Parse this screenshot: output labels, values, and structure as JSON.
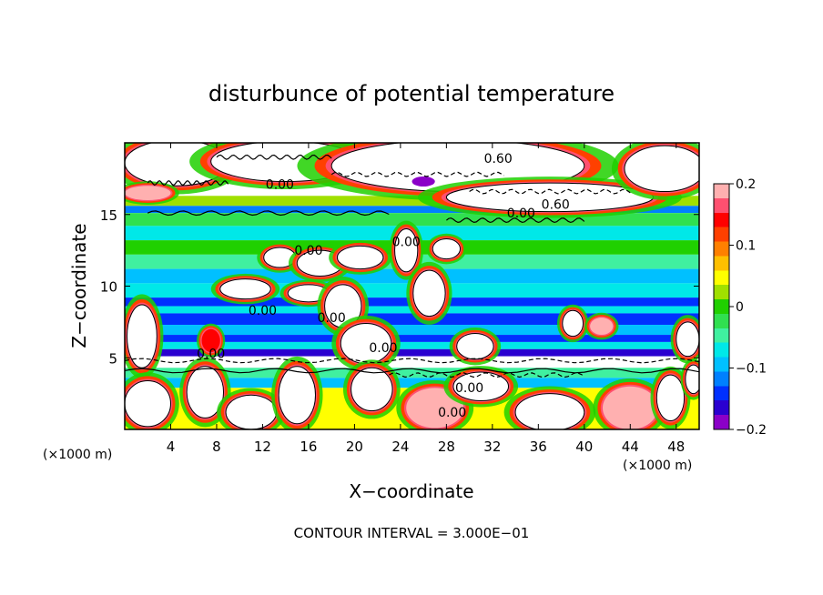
{
  "chart_data": {
    "type": "heatmap",
    "title": "disturbunce of potential temperature",
    "xlabel": "X−coordinate",
    "ylabel": "Z−coordinate",
    "x_unit_left": "(×1000 m)",
    "x_unit_right": "(×1000 m)",
    "x_ticks": [
      "4",
      "8",
      "12",
      "16",
      "20",
      "24",
      "28",
      "32",
      "36",
      "40",
      "44",
      "48"
    ],
    "y_ticks": [
      "5",
      "10",
      "15"
    ],
    "xlim": [
      0,
      50
    ],
    "ylim": [
      0,
      20
    ],
    "colorbar": {
      "min": -0.2,
      "max": 0.2,
      "tick_labels": [
        "0.2",
        "0.1",
        "0",
        "−0.1",
        "−0.2"
      ],
      "colors": [
        "#8b00c8",
        "#2a00d0",
        "#0030ff",
        "#0080ff",
        "#00c0ff",
        "#00e8e8",
        "#40f0a0",
        "#30e050",
        "#20d000",
        "#a0e000",
        "#ffff00",
        "#ffc000",
        "#ff8000",
        "#ff4000",
        "#ff0000",
        "#ff5070",
        "#ffb0b0"
      ]
    },
    "contour_labels": [
      "0.60",
      "0.00",
      "0.60",
      "0.00",
      "0.00",
      "0.00",
      "0.00",
      "0.00",
      "0.00",
      "0.00",
      "0.00",
      "0.00"
    ],
    "footer": "CONTOUR INTERVAL = 3.000E−01",
    "bands": [
      {
        "z": [
          18.3,
          20.0
        ],
        "value": 0.3
      },
      {
        "z": [
          16.3,
          18.3
        ],
        "value": 0.25
      },
      {
        "z": [
          15.6,
          16.3
        ],
        "value": 0.02
      },
      {
        "z": [
          15.1,
          15.6
        ],
        "value": -0.12
      },
      {
        "z": [
          14.2,
          15.1
        ],
        "value": -0.03
      },
      {
        "z": [
          13.2,
          14.2
        ],
        "value": -0.07
      },
      {
        "z": [
          12.2,
          13.2
        ],
        "value": -0.01
      },
      {
        "z": [
          11.2,
          12.2
        ],
        "value": -0.05
      },
      {
        "z": [
          10.2,
          11.2
        ],
        "value": -0.09
      },
      {
        "z": [
          9.2,
          10.2
        ],
        "value": -0.06
      },
      {
        "z": [
          8.6,
          9.2
        ],
        "value": -0.13
      },
      {
        "z": [
          8.1,
          8.6
        ],
        "value": -0.08
      },
      {
        "z": [
          7.3,
          8.1
        ],
        "value": -0.15
      },
      {
        "z": [
          6.6,
          7.3
        ],
        "value": -0.09
      },
      {
        "z": [
          6.1,
          6.6
        ],
        "value": -0.13
      },
      {
        "z": [
          5.6,
          6.1
        ],
        "value": -0.07
      },
      {
        "z": [
          5.1,
          5.6
        ],
        "value": -0.17
      },
      {
        "z": [
          4.3,
          5.1
        ],
        "value": 0.3
      },
      {
        "z": [
          3.6,
          4.3
        ],
        "value": -0.04
      },
      {
        "z": [
          2.9,
          3.6
        ],
        "value": -0.1
      },
      {
        "z": [
          0.0,
          2.9
        ],
        "value": 0.05
      }
    ],
    "blobs": [
      {
        "x": 4.5,
        "z": 18.6,
        "rx": 4.5,
        "rz": 1.6,
        "value": 0.3
      },
      {
        "x": 14.0,
        "z": 18.7,
        "rx": 6.5,
        "rz": 1.4,
        "value": 0.3
      },
      {
        "x": 29.0,
        "z": 18.4,
        "rx": 11.0,
        "rz": 1.8,
        "value": 0.3
      },
      {
        "x": 26.0,
        "z": 17.3,
        "rx": 1.0,
        "rz": 0.35,
        "value": -0.19
      },
      {
        "x": 37.0,
        "z": 16.2,
        "rx": 9.0,
        "rz": 1.0,
        "value": 0.28
      },
      {
        "x": 47.0,
        "z": 18.2,
        "rx": 3.5,
        "rz": 1.6,
        "value": 0.3
      },
      {
        "x": 2.0,
        "z": 16.5,
        "rx": 2.0,
        "rz": 0.5,
        "value": 0.2
      },
      {
        "x": 13.5,
        "z": 12.0,
        "rx": 1.4,
        "rz": 0.7,
        "value": 0.25
      },
      {
        "x": 17.0,
        "z": 11.6,
        "rx": 2.0,
        "rz": 0.9,
        "value": 0.3
      },
      {
        "x": 20.5,
        "z": 12.0,
        "rx": 2.0,
        "rz": 0.8,
        "value": 0.3
      },
      {
        "x": 24.5,
        "z": 12.5,
        "rx": 1.0,
        "rz": 1.5,
        "value": 0.3
      },
      {
        "x": 28.0,
        "z": 12.6,
        "rx": 1.2,
        "rz": 0.7,
        "value": 0.28
      },
      {
        "x": 10.5,
        "z": 9.8,
        "rx": 2.2,
        "rz": 0.7,
        "value": 0.25
      },
      {
        "x": 16.0,
        "z": 9.5,
        "rx": 1.8,
        "rz": 0.6,
        "value": 0.25
      },
      {
        "x": 19.0,
        "z": 8.6,
        "rx": 1.6,
        "rz": 1.5,
        "value": 0.3
      },
      {
        "x": 26.5,
        "z": 9.5,
        "rx": 1.4,
        "rz": 1.6,
        "value": 0.3
      },
      {
        "x": 21.0,
        "z": 6.0,
        "rx": 2.2,
        "rz": 1.4,
        "value": 0.3
      },
      {
        "x": 30.5,
        "z": 5.8,
        "rx": 1.6,
        "rz": 0.9,
        "value": 0.3
      },
      {
        "x": 1.5,
        "z": 6.5,
        "rx": 1.3,
        "rz": 2.2,
        "value": 0.25
      },
      {
        "x": 7.5,
        "z": 6.2,
        "rx": 0.8,
        "rz": 0.8,
        "value": 0.15
      },
      {
        "x": 39.0,
        "z": 7.4,
        "rx": 0.9,
        "rz": 0.9,
        "value": 0.25
      },
      {
        "x": 41.5,
        "z": 7.2,
        "rx": 1.0,
        "rz": 0.6,
        "value": 0.2
      },
      {
        "x": 49.0,
        "z": 6.3,
        "rx": 1.0,
        "rz": 1.2,
        "value": 0.25
      },
      {
        "x": 2.0,
        "z": 1.8,
        "rx": 2.0,
        "rz": 1.6,
        "value": 0.3
      },
      {
        "x": 7.0,
        "z": 2.6,
        "rx": 1.6,
        "rz": 1.8,
        "value": 0.3
      },
      {
        "x": 11.0,
        "z": 1.2,
        "rx": 2.2,
        "rz": 1.2,
        "value": 0.3
      },
      {
        "x": 15.0,
        "z": 2.4,
        "rx": 1.6,
        "rz": 2.0,
        "value": 0.3
      },
      {
        "x": 21.5,
        "z": 2.8,
        "rx": 1.8,
        "rz": 1.5,
        "value": 0.3
      },
      {
        "x": 27.0,
        "z": 1.5,
        "rx": 2.5,
        "rz": 1.4,
        "value": 0.18
      },
      {
        "x": 31.0,
        "z": 3.0,
        "rx": 2.4,
        "rz": 1.0,
        "value": 0.3
      },
      {
        "x": 37.0,
        "z": 1.2,
        "rx": 3.0,
        "rz": 1.3,
        "value": 0.3
      },
      {
        "x": 44.0,
        "z": 1.5,
        "rx": 2.4,
        "rz": 1.5,
        "value": 0.18
      },
      {
        "x": 47.5,
        "z": 2.2,
        "rx": 1.2,
        "rz": 1.6,
        "value": 0.3
      },
      {
        "x": 49.5,
        "z": 3.5,
        "rx": 0.7,
        "rz": 1.0,
        "value": 0.3
      }
    ],
    "contours": [
      {
        "style": "solid",
        "z": 15.1,
        "x": [
          2,
          23
        ]
      },
      {
        "style": "solid",
        "z": 14.6,
        "x": [
          28,
          40
        ]
      },
      {
        "style": "dashed",
        "z": 17.8,
        "x": [
          18,
          33
        ]
      },
      {
        "style": "dashed",
        "z": 16.6,
        "x": [
          30,
          44
        ]
      },
      {
        "style": "solid",
        "z": 17.2,
        "x": [
          2,
          9
        ]
      },
      {
        "style": "solid",
        "z": 19.0,
        "x": [
          8,
          18
        ]
      },
      {
        "style": "dashed",
        "z": 4.8,
        "x": [
          0,
          50
        ]
      },
      {
        "style": "solid",
        "z": 4.1,
        "x": [
          0,
          50
        ]
      },
      {
        "style": "dashed",
        "z": 3.8,
        "x": [
          23,
          40
        ]
      }
    ]
  }
}
